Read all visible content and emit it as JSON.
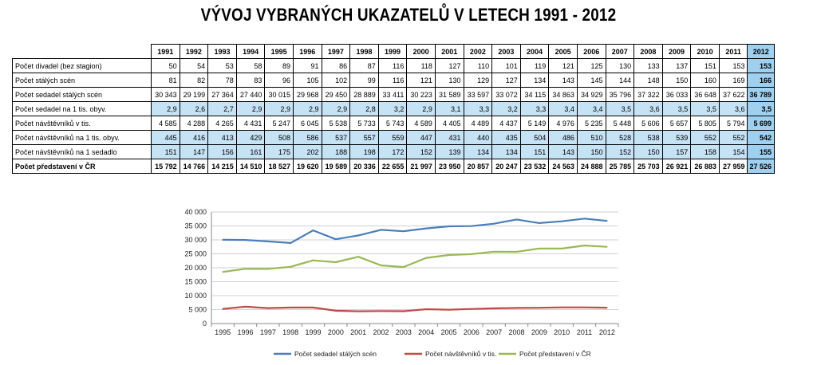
{
  "title": "VÝVOJ VYBRANÝCH UKAZATELŮ V LETECH 1991 - 2012",
  "table": {
    "years": [
      "1991",
      "1992",
      "1993",
      "1994",
      "1995",
      "1996",
      "1997",
      "1998",
      "1999",
      "2000",
      "2001",
      "2002",
      "2003",
      "2004",
      "2005",
      "2006",
      "2007",
      "2008",
      "2009",
      "2010",
      "2011",
      "2012"
    ],
    "rows": [
      {
        "label": "Počet divadel (bez stagion)",
        "values": [
          "50",
          "54",
          "53",
          "58",
          "89",
          "91",
          "86",
          "87",
          "116",
          "118",
          "127",
          "110",
          "101",
          "119",
          "121",
          "125",
          "130",
          "133",
          "137",
          "151",
          "153",
          "153"
        ],
        "highlight": false,
        "bold": false
      },
      {
        "label": "Počet stálých scén",
        "values": [
          "81",
          "82",
          "78",
          "83",
          "96",
          "105",
          "102",
          "99",
          "116",
          "121",
          "130",
          "129",
          "127",
          "134",
          "143",
          "145",
          "144",
          "148",
          "150",
          "160",
          "169",
          "166"
        ],
        "highlight": false,
        "bold": false
      },
      {
        "label": "Počet sedadel stálých scén",
        "values": [
          "30 343",
          "29 199",
          "27 364",
          "27 440",
          "30 015",
          "29 968",
          "29 450",
          "28 889",
          "33 411",
          "30 223",
          "31 589",
          "33 597",
          "33 072",
          "34 115",
          "34 863",
          "34 929",
          "35 796",
          "37 322",
          "36 033",
          "36 648",
          "37 622",
          "36 789"
        ],
        "highlight": false,
        "bold": false
      },
      {
        "label": "Počet sedadel na 1 tis. obyv.",
        "values": [
          "2,9",
          "2,6",
          "2,7",
          "2,9",
          "2,9",
          "2,9",
          "2,9",
          "2,8",
          "3,2",
          "2,9",
          "3,1",
          "3,3",
          "3,2",
          "3,3",
          "3,4",
          "3,4",
          "3,5",
          "3,6",
          "3,5",
          "3,5",
          "3,6",
          "3,5"
        ],
        "highlight": true,
        "bold": false
      },
      {
        "label": "Počet návštěvníků v tis.",
        "values": [
          "4 585",
          "4 288",
          "4 265",
          "4 431",
          "5 247",
          "6 045",
          "5 538",
          "5 733",
          "5 743",
          "4 589",
          "4 405",
          "4 489",
          "4 437",
          "5 149",
          "4 976",
          "5 235",
          "5 448",
          "5 606",
          "5 657",
          "5 805",
          "5 794",
          "5 699"
        ],
        "highlight": false,
        "bold": false
      },
      {
        "label": "Počet návštěvníků na 1 tis. obyv.",
        "values": [
          "445",
          "416",
          "413",
          "429",
          "508",
          "586",
          "537",
          "557",
          "559",
          "447",
          "431",
          "440",
          "435",
          "504",
          "486",
          "510",
          "528",
          "538",
          "539",
          "552",
          "552",
          "542"
        ],
        "highlight": true,
        "bold": false
      },
      {
        "label": "Počet návštěvníků na 1 sedadlo",
        "values": [
          "151",
          "147",
          "156",
          "161",
          "175",
          "202",
          "188",
          "198",
          "172",
          "152",
          "139",
          "134",
          "134",
          "151",
          "143",
          "150",
          "152",
          "150",
          "157",
          "158",
          "154",
          "155"
        ],
        "highlight": true,
        "bold": false
      },
      {
        "label": "Počet představení v ČR",
        "values": [
          "15 792",
          "14 766",
          "14 215",
          "14 510",
          "18 527",
          "19 620",
          "19 589",
          "20 336",
          "22 655",
          "21 997",
          "23 950",
          "20 857",
          "20 247",
          "23 532",
          "24 563",
          "24 888",
          "25 785",
          "25 703",
          "26 921",
          "26 883",
          "27 959",
          "27 526"
        ],
        "highlight": false,
        "bold": true
      }
    ]
  },
  "chart_data": {
    "type": "line",
    "x": [
      "1995",
      "1996",
      "1997",
      "1998",
      "1999",
      "2000",
      "2001",
      "2002",
      "2003",
      "2004",
      "2005",
      "2006",
      "2007",
      "2008",
      "2009",
      "2010",
      "2011",
      "2012"
    ],
    "ylim": [
      0,
      40000
    ],
    "yticks": [
      "0",
      "5 000",
      "10 000",
      "15 000",
      "20 000",
      "25 000",
      "30 000",
      "35 000",
      "40 000"
    ],
    "grid": true,
    "legend_position": "bottom",
    "series": [
      {
        "name": "Počet sedadel stálých scén",
        "color": "#4a7ebb",
        "values": [
          30015,
          29968,
          29450,
          28889,
          33411,
          30223,
          31589,
          33597,
          33072,
          34115,
          34863,
          34929,
          35796,
          37322,
          36033,
          36648,
          37622,
          36789
        ]
      },
      {
        "name": "Počet návštěvníků v tis.",
        "color": "#be4b48",
        "values": [
          5247,
          6045,
          5538,
          5733,
          5743,
          4589,
          4405,
          4489,
          4437,
          5149,
          4976,
          5235,
          5448,
          5606,
          5657,
          5805,
          5794,
          5699
        ]
      },
      {
        "name": "Počet představení v ČR",
        "color": "#98b954",
        "values": [
          18527,
          19620,
          19589,
          20336,
          22655,
          21997,
          23950,
          20857,
          20247,
          23532,
          24563,
          24888,
          25785,
          25703,
          26921,
          26883,
          27959,
          27526
        ]
      }
    ]
  }
}
